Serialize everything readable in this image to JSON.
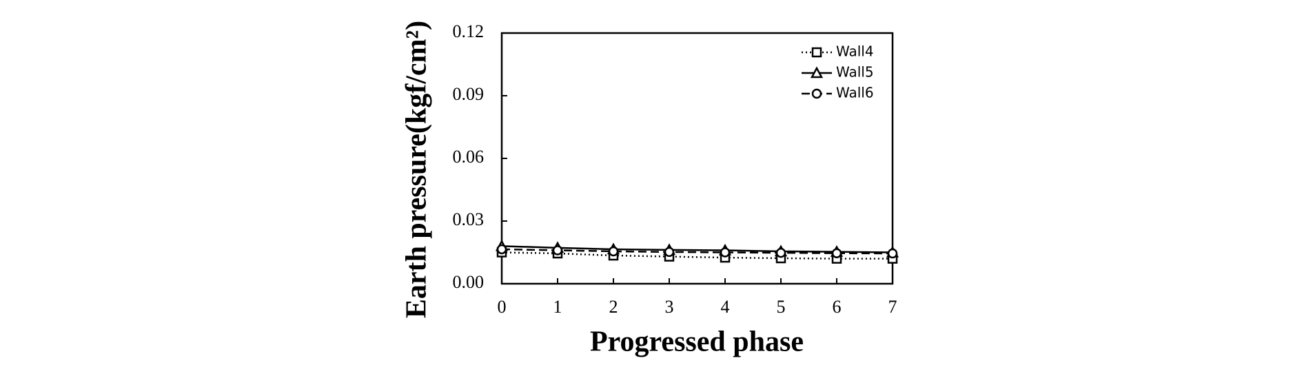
{
  "chart_data": {
    "type": "line",
    "xlabel": "Progressed phase",
    "ylabel": "Earth pressure(kgf/cm²)",
    "x": [
      0,
      1,
      2,
      3,
      4,
      5,
      6,
      7
    ],
    "series": [
      {
        "name": "Wall4",
        "color": "#000000",
        "linestyle": "dotted",
        "marker": "square",
        "values": [
          0.015,
          0.0145,
          0.0135,
          0.013,
          0.0125,
          0.0122,
          0.012,
          0.012
        ]
      },
      {
        "name": "Wall5",
        "color": "#000000",
        "linestyle": "solid",
        "marker": "triangle",
        "values": [
          0.018,
          0.0172,
          0.0165,
          0.0162,
          0.016,
          0.0155,
          0.0153,
          0.015
        ]
      },
      {
        "name": "Wall6",
        "color": "#000000",
        "linestyle": "dashed",
        "marker": "circle",
        "values": [
          0.0165,
          0.016,
          0.0155,
          0.0152,
          0.015,
          0.0148,
          0.0146,
          0.0145
        ]
      }
    ],
    "xlim": [
      0,
      7
    ],
    "xticks": [
      0,
      1,
      2,
      3,
      4,
      5,
      6,
      7
    ],
    "ylim": [
      0,
      0.12
    ],
    "yticks": [
      {
        "value": 0,
        "label": "0.00"
      },
      {
        "value": 0.03,
        "label": "0.03"
      },
      {
        "value": 0.06,
        "label": "0.06"
      },
      {
        "value": 0.09,
        "label": "0.09"
      },
      {
        "value": 0.12,
        "label": "0.12"
      }
    ],
    "grid": false,
    "legend": "upper right"
  }
}
